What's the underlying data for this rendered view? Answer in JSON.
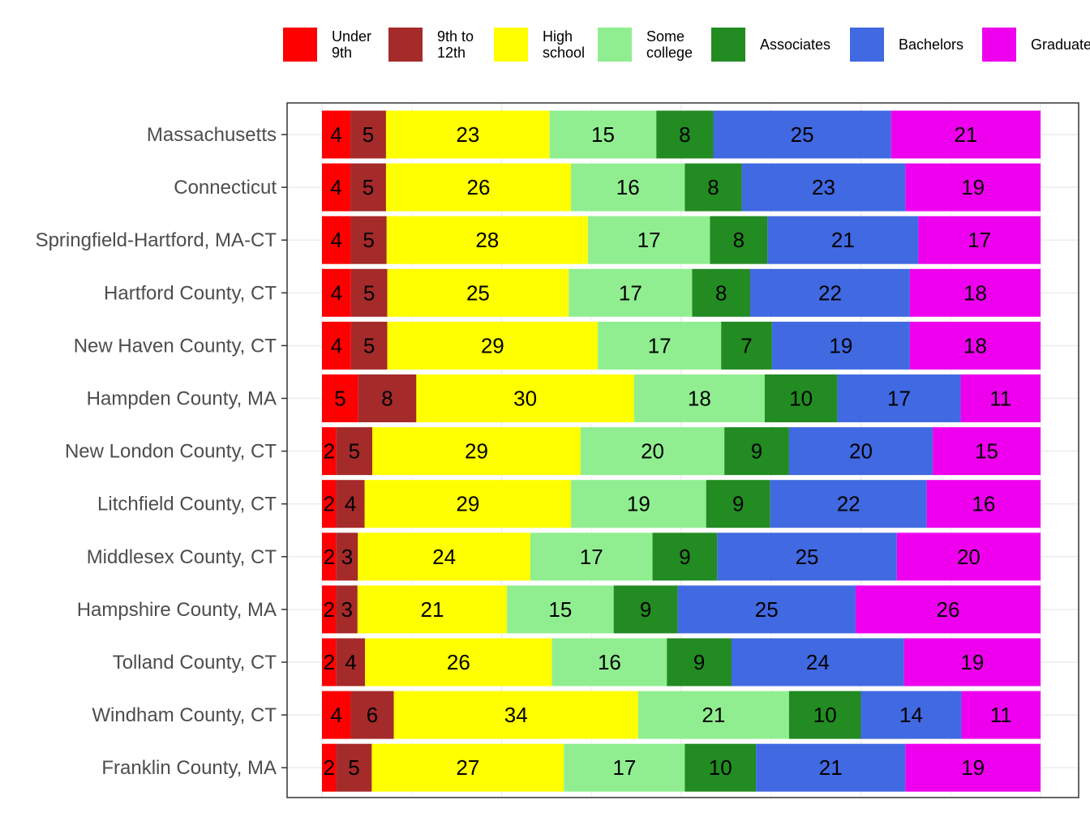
{
  "chart_data": {
    "type": "bar",
    "orientation": "horizontal",
    "stacked": true,
    "normalized_percent": true,
    "categories": [
      "Massachusetts",
      "Connecticut",
      "Springfield-Hartford, MA-CT",
      "Hartford County, CT",
      "New Haven County, CT",
      "Hampden County, MA",
      "New London County, CT",
      "Litchfield County, CT",
      "Middlesex County, CT",
      "Hampshire County, MA",
      "Tolland County, CT",
      "Windham County, CT",
      "Franklin County, MA"
    ],
    "series": [
      {
        "name": "Under 9th",
        "legend_lines": [
          "Under",
          "9th"
        ],
        "color": "#ff0000",
        "values": [
          4,
          4,
          4,
          4,
          4,
          5,
          2,
          2,
          2,
          2,
          2,
          4,
          2
        ]
      },
      {
        "name": "9th to 12th",
        "legend_lines": [
          "9th to",
          "12th"
        ],
        "color": "#a52a2a",
        "values": [
          5,
          5,
          5,
          5,
          5,
          8,
          5,
          4,
          3,
          3,
          4,
          6,
          5
        ]
      },
      {
        "name": "High school",
        "legend_lines": [
          "High",
          "school"
        ],
        "color": "#ffff00",
        "values": [
          23,
          26,
          28,
          25,
          29,
          30,
          29,
          29,
          24,
          21,
          26,
          34,
          27
        ]
      },
      {
        "name": "Some college",
        "legend_lines": [
          "Some",
          "college"
        ],
        "color": "#90ee90",
        "values": [
          15,
          16,
          17,
          17,
          17,
          18,
          20,
          19,
          17,
          15,
          16,
          21,
          17
        ]
      },
      {
        "name": "Associates",
        "legend_lines": [
          "Associates"
        ],
        "color": "#228b22",
        "values": [
          8,
          8,
          8,
          8,
          7,
          10,
          9,
          9,
          9,
          9,
          9,
          10,
          10
        ]
      },
      {
        "name": "Bachelors",
        "legend_lines": [
          "Bachelors"
        ],
        "color": "#4169e1",
        "values": [
          25,
          23,
          21,
          22,
          19,
          17,
          20,
          22,
          25,
          25,
          24,
          14,
          21
        ]
      },
      {
        "name": "Graduate",
        "legend_lines": [
          "Graduate"
        ],
        "color": "#ee00ee",
        "values": [
          21,
          19,
          17,
          18,
          18,
          11,
          15,
          16,
          20,
          26,
          19,
          11,
          19
        ]
      }
    ],
    "xlim": [
      0,
      100
    ],
    "x_axis_labels_shown": false,
    "grid": true,
    "legend_position": "top"
  }
}
